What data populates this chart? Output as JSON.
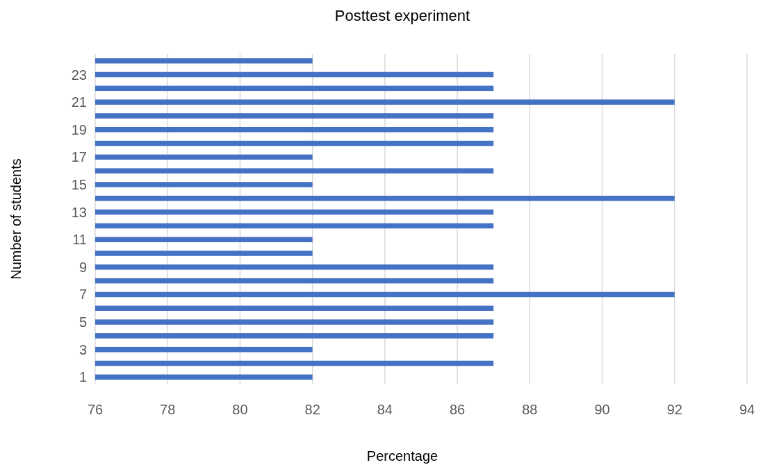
{
  "chart_data": {
    "type": "bar",
    "orientation": "horizontal",
    "title": "Posttest  experiment",
    "xlabel": "Percentage",
    "ylabel": "Number of students",
    "categories": [
      null,
      "23",
      null,
      "21",
      null,
      "19",
      null,
      "17",
      null,
      "15",
      null,
      "13",
      null,
      "11",
      null,
      "9",
      null,
      "7",
      null,
      "5",
      null,
      "3",
      null,
      "1"
    ],
    "values": [
      82,
      87,
      87,
      92,
      87,
      87,
      87,
      82,
      87,
      82,
      92,
      87,
      87,
      82,
      82,
      87,
      87,
      92,
      87,
      87,
      87,
      82,
      87,
      82
    ],
    "color": "#4472c4",
    "xlim": [
      76,
      94
    ],
    "xticks": [
      76,
      78,
      80,
      82,
      84,
      86,
      88,
      90,
      92,
      94
    ],
    "grid": "x"
  }
}
